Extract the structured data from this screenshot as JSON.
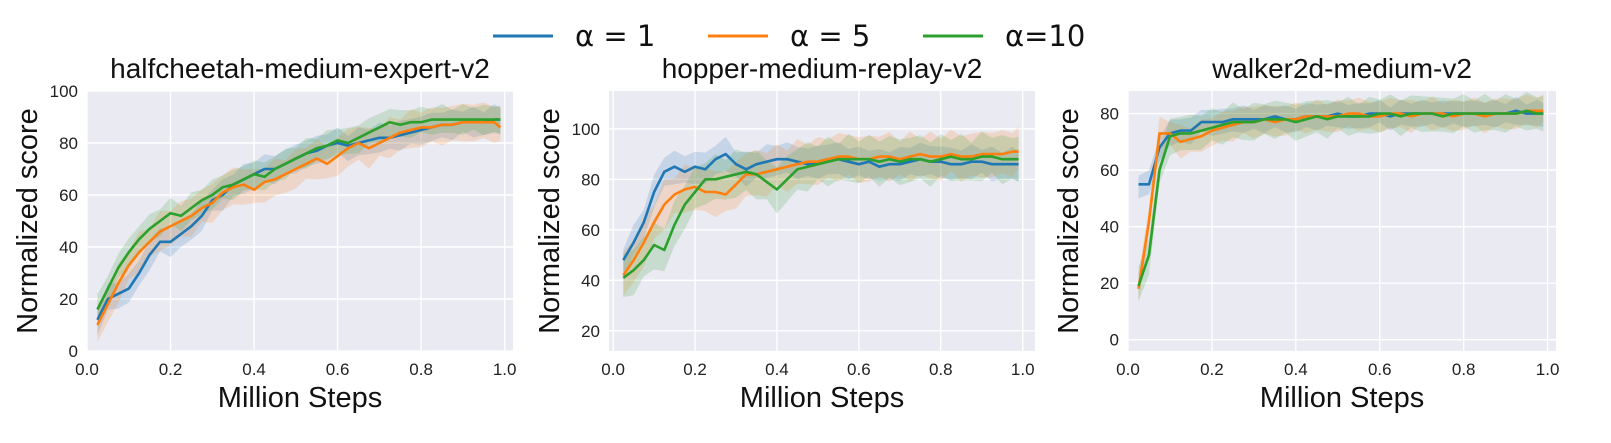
{
  "legend": {
    "entries": [
      {
        "label": "α = 1",
        "color": "#1f77b4"
      },
      {
        "label": "α = 5",
        "color": "#ff7f0e"
      },
      {
        "label": "α=10",
        "color": "#2ca02c"
      }
    ]
  },
  "chart_data": [
    {
      "type": "line",
      "title": "halfcheetah-medium-expert-v2",
      "xlabel": "Million Steps",
      "ylabel": "Normalized score",
      "xlim": [
        0.0,
        1.02
      ],
      "ylim": [
        0,
        100
      ],
      "xticks": [
        "0.0",
        "0.2",
        "0.4",
        "0.6",
        "0.8",
        "1.0"
      ],
      "yticks": [
        "0",
        "20",
        "40",
        "60",
        "80",
        "100"
      ],
      "grid": true,
      "x": [
        0.025,
        0.05,
        0.075,
        0.1,
        0.125,
        0.15,
        0.175,
        0.2,
        0.225,
        0.25,
        0.275,
        0.3,
        0.325,
        0.35,
        0.375,
        0.4,
        0.425,
        0.45,
        0.475,
        0.5,
        0.525,
        0.55,
        0.575,
        0.6,
        0.625,
        0.65,
        0.675,
        0.7,
        0.725,
        0.75,
        0.775,
        0.8,
        0.825,
        0.85,
        0.875,
        0.9,
        0.925,
        0.95,
        0.975,
        0.99
      ],
      "series": [
        {
          "name": "α = 1",
          "color": "#1f77b4",
          "band": 6,
          "values": [
            12,
            20,
            22,
            24,
            30,
            37,
            42,
            42,
            45,
            48,
            52,
            58,
            60,
            64,
            66,
            68,
            70,
            70,
            72,
            74,
            76,
            77,
            79,
            80,
            79,
            80,
            81,
            82,
            82,
            83,
            84,
            85,
            86,
            87,
            87,
            88,
            88,
            88,
            89,
            89
          ]
        },
        {
          "name": "α = 5",
          "color": "#ff7f0e",
          "band": 8,
          "values": [
            10,
            18,
            26,
            33,
            38,
            42,
            46,
            48,
            50,
            52,
            55,
            57,
            61,
            63,
            64,
            62,
            65,
            66,
            68,
            70,
            72,
            74,
            72,
            75,
            78,
            80,
            78,
            80,
            82,
            84,
            85,
            86,
            86,
            87,
            87,
            88,
            88,
            88,
            88,
            86
          ]
        },
        {
          "name": "α=10",
          "color": "#2ca02c",
          "band": 6,
          "values": [
            16,
            24,
            32,
            38,
            43,
            47,
            50,
            53,
            52,
            55,
            58,
            60,
            63,
            64,
            66,
            68,
            67,
            70,
            72,
            74,
            76,
            78,
            79,
            81,
            80,
            82,
            84,
            86,
            88,
            87,
            88,
            88,
            89,
            89,
            89,
            89,
            89,
            89,
            89,
            89
          ]
        }
      ]
    },
    {
      "type": "line",
      "title": "hopper-medium-replay-v2",
      "xlabel": "Million Steps",
      "ylabel": "Normalized score",
      "xlim": [
        -0.01,
        1.03
      ],
      "ylim": [
        12,
        115
      ],
      "xticks": [
        "0.0",
        "0.2",
        "0.4",
        "0.6",
        "0.8",
        "1.0"
      ],
      "yticks": [
        "20",
        "40",
        "60",
        "80",
        "100"
      ],
      "grid": true,
      "x": [
        0.025,
        0.05,
        0.075,
        0.1,
        0.125,
        0.15,
        0.175,
        0.2,
        0.225,
        0.25,
        0.275,
        0.3,
        0.325,
        0.35,
        0.375,
        0.4,
        0.425,
        0.45,
        0.475,
        0.5,
        0.525,
        0.55,
        0.575,
        0.6,
        0.625,
        0.65,
        0.675,
        0.7,
        0.725,
        0.75,
        0.775,
        0.8,
        0.825,
        0.85,
        0.875,
        0.9,
        0.925,
        0.95,
        0.975,
        0.99
      ],
      "series": [
        {
          "name": "α = 1",
          "color": "#1f77b4",
          "band": 7,
          "values": [
            48,
            55,
            63,
            75,
            83,
            85,
            83,
            85,
            84,
            88,
            90,
            86,
            84,
            86,
            87,
            88,
            88,
            87,
            86,
            87,
            88,
            88,
            87,
            86,
            87,
            85,
            86,
            86,
            87,
            88,
            87,
            87,
            86,
            86,
            87,
            87,
            86,
            86,
            86,
            86
          ]
        },
        {
          "name": "α = 5",
          "color": "#ff7f0e",
          "band": 10,
          "values": [
            42,
            48,
            55,
            63,
            70,
            74,
            76,
            77,
            75,
            75,
            74,
            78,
            82,
            82,
            83,
            84,
            85,
            86,
            87,
            87,
            88,
            89,
            89,
            88,
            88,
            89,
            89,
            88,
            89,
            90,
            89,
            89,
            90,
            89,
            89,
            90,
            90,
            90,
            91,
            91
          ]
        },
        {
          "name": "α=10",
          "color": "#2ca02c",
          "band": 10,
          "values": [
            41,
            44,
            48,
            54,
            52,
            62,
            70,
            75,
            80,
            80,
            81,
            82,
            83,
            82,
            79,
            76,
            80,
            84,
            85,
            86,
            87,
            88,
            88,
            88,
            88,
            87,
            88,
            87,
            88,
            88,
            87,
            88,
            89,
            88,
            88,
            89,
            89,
            88,
            88,
            88
          ]
        }
      ]
    },
    {
      "type": "line",
      "title": "walker2d-medium-v2",
      "xlabel": "Million Steps",
      "ylabel": "Normalized score",
      "xlim": [
        0.0,
        1.02
      ],
      "ylim": [
        -4,
        88
      ],
      "xticks": [
        "0.0",
        "0.2",
        "0.4",
        "0.6",
        "0.8",
        "1.0"
      ],
      "yticks": [
        "0",
        "20",
        "40",
        "60",
        "80"
      ],
      "grid": true,
      "x": [
        0.025,
        0.05,
        0.075,
        0.1,
        0.125,
        0.15,
        0.175,
        0.2,
        0.225,
        0.25,
        0.275,
        0.3,
        0.325,
        0.35,
        0.375,
        0.4,
        0.425,
        0.45,
        0.475,
        0.5,
        0.525,
        0.55,
        0.575,
        0.6,
        0.625,
        0.65,
        0.675,
        0.7,
        0.725,
        0.75,
        0.775,
        0.8,
        0.825,
        0.85,
        0.875,
        0.9,
        0.925,
        0.95,
        0.975,
        0.99
      ],
      "series": [
        {
          "name": "α = 1",
          "color": "#1f77b4",
          "band": 5,
          "values": [
            55,
            55,
            68,
            73,
            74,
            74,
            77,
            77,
            77,
            78,
            78,
            78,
            78,
            79,
            78,
            78,
            79,
            79,
            79,
            80,
            79,
            79,
            80,
            80,
            79,
            80,
            80,
            80,
            80,
            80,
            80,
            80,
            80,
            80,
            80,
            80,
            81,
            80,
            80,
            80
          ]
        },
        {
          "name": "α = 5",
          "color": "#ff7f0e",
          "band": 6,
          "values": [
            18,
            42,
            73,
            73,
            70,
            71,
            72,
            74,
            75,
            76,
            77,
            77,
            78,
            77,
            78,
            78,
            79,
            79,
            79,
            79,
            80,
            80,
            79,
            79,
            80,
            80,
            79,
            80,
            80,
            80,
            79,
            80,
            80,
            79,
            80,
            80,
            80,
            81,
            81,
            81
          ]
        },
        {
          "name": "α=10",
          "color": "#2ca02c",
          "band": 7,
          "values": [
            19,
            30,
            60,
            72,
            73,
            73,
            74,
            75,
            76,
            77,
            77,
            77,
            78,
            78,
            78,
            77,
            78,
            79,
            78,
            79,
            79,
            79,
            79,
            80,
            80,
            79,
            80,
            80,
            80,
            79,
            80,
            80,
            80,
            80,
            80,
            80,
            80,
            81,
            80,
            80
          ]
        }
      ]
    }
  ]
}
